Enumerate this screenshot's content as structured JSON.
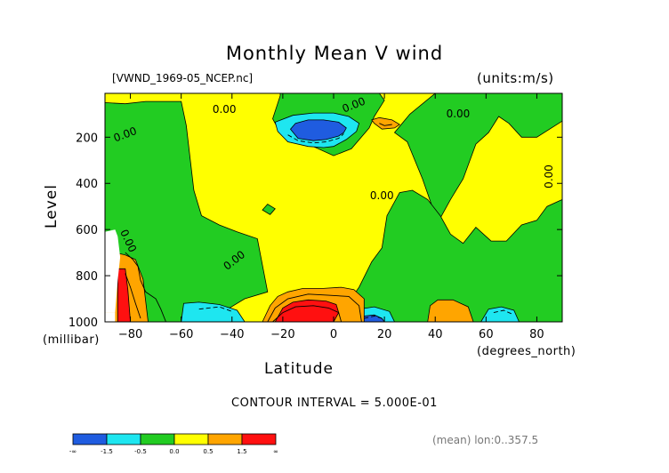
{
  "chart_data": {
    "type": "heatmap",
    "title": "Monthly Mean V wind",
    "file_label": "[VWND_1969-05_NCEP.nc]",
    "units_label": "(units:m/s)",
    "xlabel": "Latitude",
    "x_unit": "(degrees_north)",
    "ylabel": "Level",
    "y_unit": "(millibar)",
    "xlim": [
      -90,
      90
    ],
    "ylim": [
      1000,
      10
    ],
    "x_ticks": [
      -80,
      -60,
      -40,
      -20,
      0,
      20,
      40,
      60,
      80
    ],
    "y_ticks": [
      200,
      400,
      600,
      800,
      1000
    ],
    "contour_interval_text": "CONTOUR INTERVAL = 5.000E-01",
    "contour_label": "0.00",
    "region_text": "(mean) lon:0..357.5",
    "colorbar": {
      "labels": [
        "-∞",
        "-1.5",
        "-0.5",
        "0.0",
        "0.5",
        "1.5",
        "∞"
      ],
      "colors": [
        "#1f5ce0",
        "#1ee6f0",
        "#22cc22",
        "#ffff00",
        "#ffa500",
        "#ff1010"
      ]
    },
    "regions": [
      {
        "level": "negative",
        "color": "#22cc22",
        "points": [
          [
            -90,
            50
          ],
          [
            -82,
            55
          ],
          [
            -74,
            45
          ],
          [
            -60,
            45
          ],
          [
            -58,
            150
          ],
          [
            -55,
            430
          ],
          [
            -52,
            540
          ],
          [
            -45,
            580
          ],
          [
            -38,
            610
          ],
          [
            -30,
            640
          ],
          [
            -26,
            870
          ],
          [
            -35,
            900
          ],
          [
            -50,
            1000
          ],
          [
            -90,
            1000
          ]
        ]
      },
      {
        "level": "negative",
        "color": "#22cc22",
        "points": [
          [
            -21,
            10
          ],
          [
            -21,
            20
          ],
          [
            -24,
            120
          ],
          [
            -21,
            180
          ],
          [
            -18,
            220
          ],
          [
            -8,
            240
          ],
          [
            0,
            280
          ],
          [
            7,
            250
          ],
          [
            14,
            160
          ],
          [
            16,
            110
          ],
          [
            20,
            40
          ],
          [
            18,
            10
          ]
        ]
      },
      {
        "level": "negative",
        "color": "#22cc22",
        "points": [
          [
            24,
            180
          ],
          [
            29,
            220
          ],
          [
            35,
            380
          ],
          [
            41,
            570
          ],
          [
            46,
            470
          ],
          [
            51,
            380
          ],
          [
            56,
            230
          ],
          [
            61,
            180
          ],
          [
            65,
            110
          ],
          [
            69,
            140
          ],
          [
            74,
            200
          ],
          [
            80,
            200
          ],
          [
            90,
            130
          ],
          [
            90,
            10
          ],
          [
            60,
            10
          ],
          [
            40,
            10
          ],
          [
            30,
            100
          ]
        ]
      },
      {
        "level": "negative",
        "color": "#22cc22",
        "points": [
          [
            10,
            850
          ],
          [
            15,
            740
          ],
          [
            19,
            680
          ],
          [
            21,
            540
          ],
          [
            26,
            440
          ],
          [
            31,
            430
          ],
          [
            37,
            470
          ],
          [
            42,
            540
          ],
          [
            46,
            620
          ],
          [
            51,
            660
          ],
          [
            56,
            590
          ],
          [
            62,
            650
          ],
          [
            68,
            650
          ],
          [
            74,
            580
          ],
          [
            80,
            560
          ],
          [
            84,
            500
          ],
          [
            88,
            480
          ],
          [
            90,
            470
          ],
          [
            90,
            1000
          ],
          [
            -10,
            1000
          ],
          [
            -14,
            990
          ],
          [
            3,
            960
          ]
        ]
      },
      {
        "level": "negative",
        "color": "#22cc22",
        "points": [
          [
            -26,
            490
          ],
          [
            -28,
            515
          ],
          [
            -25,
            535
          ],
          [
            -23,
            510
          ]
        ]
      },
      {
        "level": "weak-negative",
        "color": "#1ee6f0",
        "points": [
          [
            -23,
            135
          ],
          [
            -22,
            175
          ],
          [
            -18,
            220
          ],
          [
            -10,
            240
          ],
          [
            -4,
            245
          ],
          [
            0,
            240
          ],
          [
            5,
            210
          ],
          [
            9,
            175
          ],
          [
            10,
            140
          ],
          [
            6,
            110
          ],
          [
            0,
            95
          ],
          [
            -8,
            95
          ],
          [
            -16,
            105
          ]
        ]
      },
      {
        "level": "strong-negative",
        "color": "#1f5ce0",
        "points": [
          [
            -17,
            165
          ],
          [
            -14,
            205
          ],
          [
            -8,
            215
          ],
          [
            -3,
            210
          ],
          [
            2,
            195
          ],
          [
            4,
            180
          ],
          [
            5,
            160
          ],
          [
            2,
            135
          ],
          [
            -4,
            125
          ],
          [
            -10,
            125
          ],
          [
            -15,
            140
          ]
        ]
      },
      {
        "level": "weak-negative",
        "color": "#1ee6f0",
        "points": [
          [
            -60,
            1000
          ],
          [
            -59,
            920
          ],
          [
            -53,
            915
          ],
          [
            -45,
            925
          ],
          [
            -38,
            950
          ],
          [
            -35,
            1000
          ]
        ]
      },
      {
        "level": "weak-negative",
        "color": "#1ee6f0",
        "points": [
          [
            7,
            1000
          ],
          [
            10,
            945
          ],
          [
            16,
            935
          ],
          [
            22,
            955
          ],
          [
            24,
            1000
          ]
        ]
      },
      {
        "level": "strong-negative",
        "color": "#1f5ce0",
        "points": [
          [
            10,
            1000
          ],
          [
            12,
            975
          ],
          [
            16,
            970
          ],
          [
            19,
            985
          ],
          [
            20,
            1000
          ]
        ]
      },
      {
        "level": "weak-negative",
        "color": "#1ee6f0",
        "points": [
          [
            58,
            1000
          ],
          [
            61,
            945
          ],
          [
            66,
            935
          ],
          [
            71,
            950
          ],
          [
            73,
            1000
          ]
        ]
      },
      {
        "level": "weak-positive",
        "color": "#ffa500",
        "points": [
          [
            -90,
            1000
          ],
          [
            -90,
            710
          ],
          [
            -86,
            700
          ],
          [
            -82,
            710
          ],
          [
            -78,
            730
          ],
          [
            -75,
            815
          ],
          [
            -73,
            1000
          ]
        ]
      },
      {
        "level": "weak-positive",
        "color": "#ffa500",
        "points": [
          [
            -28,
            1000
          ],
          [
            -25,
            930
          ],
          [
            -22,
            890
          ],
          [
            -18,
            870
          ],
          [
            -12,
            855
          ],
          [
            -4,
            855
          ],
          [
            3,
            850
          ],
          [
            8,
            860
          ],
          [
            12,
            900
          ],
          [
            12,
            1000
          ]
        ]
      },
      {
        "level": "weak-positive",
        "color": "#ffa500",
        "points": [
          [
            15,
            125
          ],
          [
            16,
            140
          ],
          [
            19,
            165
          ],
          [
            24,
            160
          ],
          [
            26,
            145
          ],
          [
            23,
            125
          ],
          [
            18,
            115
          ]
        ]
      },
      {
        "level": "weak-positive",
        "color": "#ffa500",
        "points": [
          [
            37,
            1000
          ],
          [
            38,
            930
          ],
          [
            41,
            905
          ],
          [
            47,
            905
          ],
          [
            53,
            935
          ],
          [
            55,
            1000
          ]
        ]
      },
      {
        "level": "positive",
        "color": "#ff1010",
        "points": [
          [
            -85,
            1000
          ],
          [
            -85,
            770
          ],
          [
            -82,
            770
          ],
          [
            -81,
            860
          ],
          [
            -80,
            1000
          ]
        ]
      },
      {
        "level": "positive",
        "color": "#ff1010",
        "points": [
          [
            -23,
            1000
          ],
          [
            -20,
            940
          ],
          [
            -16,
            915
          ],
          [
            -10,
            905
          ],
          [
            -3,
            910
          ],
          [
            1,
            925
          ],
          [
            2,
            960
          ],
          [
            0,
            1000
          ]
        ]
      }
    ],
    "contour_lines": [
      {
        "kind": "solid",
        "points": [
          [
            -82,
            700
          ],
          [
            -79,
            730
          ],
          [
            -77,
            760
          ],
          [
            -76,
            820
          ],
          [
            -74,
            870
          ],
          [
            -70,
            900
          ],
          [
            -68,
            945
          ],
          [
            -66,
            1000
          ]
        ]
      },
      {
        "kind": "solid",
        "points": [
          [
            -82,
            790
          ],
          [
            -80,
            850
          ],
          [
            -78,
            920
          ],
          [
            -76,
            985
          ]
        ]
      },
      {
        "kind": "solid",
        "points": [
          [
            -26,
            1000
          ],
          [
            -23,
            940
          ],
          [
            -18,
            900
          ],
          [
            -10,
            880
          ],
          [
            -2,
            885
          ],
          [
            6,
            890
          ],
          [
            10,
            930
          ],
          [
            11,
            1000
          ]
        ]
      },
      {
        "kind": "solid",
        "points": [
          [
            -24,
            1000
          ],
          [
            -20,
            960
          ],
          [
            -15,
            935
          ],
          [
            -8,
            930
          ],
          [
            -2,
            940
          ],
          [
            2,
            960
          ],
          [
            3,
            1000
          ]
        ]
      },
      {
        "kind": "dashed",
        "points": [
          [
            -18,
            190
          ],
          [
            -14,
            215
          ],
          [
            -8,
            225
          ],
          [
            -3,
            220
          ],
          [
            2,
            205
          ],
          [
            4,
            185
          ]
        ]
      },
      {
        "kind": "dashed",
        "points": [
          [
            -53,
            945
          ],
          [
            -45,
            935
          ],
          [
            -40,
            955
          ]
        ]
      },
      {
        "kind": "dashed",
        "points": [
          [
            63,
            960
          ],
          [
            67,
            950
          ],
          [
            70,
            965
          ]
        ]
      },
      {
        "kind": "dashed",
        "points": [
          [
            12,
            985
          ],
          [
            16,
            975
          ],
          [
            19,
            985
          ]
        ]
      },
      {
        "kind": "solid",
        "points": [
          [
            18,
            140
          ],
          [
            20,
            150
          ],
          [
            23,
            145
          ]
        ]
      }
    ],
    "labels": [
      {
        "text": "0.00",
        "x": -43,
        "y": 82,
        "angle": 0
      },
      {
        "text": "0.00",
        "x": -82,
        "y": 190,
        "angle": -20
      },
      {
        "text": "0.00",
        "x": 8,
        "y": 62,
        "angle": -22
      },
      {
        "text": "0.00",
        "x": 49,
        "y": 100,
        "angle": 0
      },
      {
        "text": "0.00",
        "x": 19,
        "y": 455,
        "angle": 0
      },
      {
        "text": "0.00",
        "x": -39,
        "y": 735,
        "angle": -38
      },
      {
        "text": "0.00",
        "x": -81,
        "y": 650,
        "angle": 65
      },
      {
        "text": "0.00",
        "x": 85,
        "y": 370,
        "angle": -90
      }
    ],
    "undefined_mask": [
      [
        -90,
        610
      ],
      [
        -86,
        600
      ],
      [
        -85,
        630
      ],
      [
        -84,
        720
      ],
      [
        -85,
        820
      ],
      [
        -86,
        960
      ],
      [
        -90,
        960
      ]
    ],
    "undefined_steps": [
      [
        -90,
        960
      ],
      [
        -86,
        960
      ],
      [
        -86,
        1000
      ],
      [
        -90,
        1000
      ]
    ]
  }
}
